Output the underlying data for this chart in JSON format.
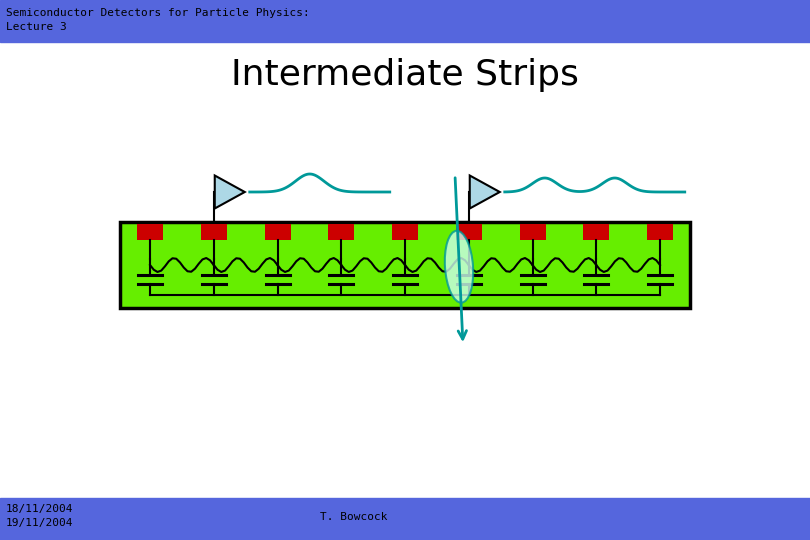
{
  "title": "Intermediate Strips",
  "header_text": "Semiconductor Detectors for Particle Physics:\nLecture 3",
  "footer_left": "18/11/2004\n19/11/2004",
  "footer_center": "T. Bowcock",
  "header_bg": "#5566dd",
  "footer_bg": "#5566dd",
  "header_text_color": "#000000",
  "title_color": "#000000",
  "bg_color": "#ffffff",
  "detector_green": "#66ee00",
  "detector_border": "#000000",
  "strip_red": "#cc0000",
  "teal": "#009999",
  "title_fontsize": 26,
  "header_fontsize": 8,
  "footer_fontsize": 8
}
